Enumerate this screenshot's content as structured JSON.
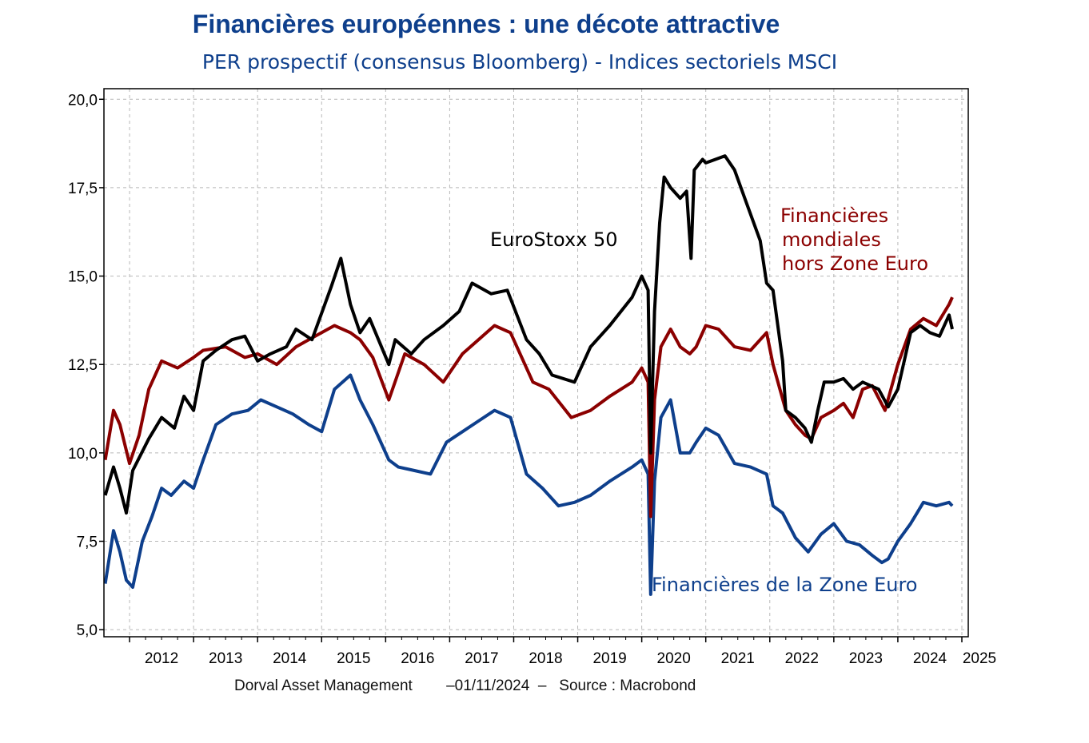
{
  "chart_data": {
    "type": "line",
    "title": "Financières européennes : une décote attractive",
    "subtitle": "PER prospectif (consensus Bloomberg) - Indices sectoriels MSCI",
    "xlabel": "",
    "ylabel": "",
    "xlim": [
      2011.6,
      2025.1
    ],
    "ylim": [
      4.8,
      20.3
    ],
    "x_ticks": [
      2012,
      2013,
      2014,
      2015,
      2016,
      2017,
      2018,
      2019,
      2020,
      2021,
      2022,
      2023,
      2024,
      2025
    ],
    "x_tick_labels": [
      "2012",
      "2013",
      "2014",
      "2015",
      "2016",
      "2017",
      "2018",
      "2019",
      "2020",
      "2021",
      "2022",
      "2023",
      "2024",
      "2025"
    ],
    "y_ticks": [
      5.0,
      7.5,
      10.0,
      12.5,
      15.0,
      17.5,
      20.0
    ],
    "y_tick_labels": [
      "5,0",
      "7,5",
      "10,0",
      "12,5",
      "15,0",
      "17,5",
      "20,0"
    ],
    "grid": true,
    "legend": "none",
    "series": [
      {
        "name": "EuroStoxx 50",
        "color": "#000000",
        "x": [
          2011.62,
          2011.75,
          2011.85,
          2011.95,
          2012.05,
          2012.3,
          2012.5,
          2012.7,
          2012.85,
          2013.0,
          2013.15,
          2013.35,
          2013.6,
          2013.8,
          2014.0,
          2014.2,
          2014.45,
          2014.6,
          2014.85,
          2015.15,
          2015.3,
          2015.45,
          2015.6,
          2015.75,
          2016.05,
          2016.15,
          2016.4,
          2016.6,
          2016.9,
          2017.15,
          2017.35,
          2017.65,
          2017.9,
          2018.2,
          2018.4,
          2018.6,
          2018.95,
          2019.2,
          2019.5,
          2019.85,
          2020.0,
          2020.1,
          2020.14,
          2020.2,
          2020.28,
          2020.35,
          2020.45,
          2020.6,
          2020.7,
          2020.77,
          2020.82,
          2020.95,
          2021.0,
          2021.3,
          2021.45,
          2021.65,
          2021.85,
          2021.95,
          2022.05,
          2022.2,
          2022.25,
          2022.4,
          2022.55,
          2022.65,
          2022.75,
          2022.85,
          2023.0,
          2023.15,
          2023.3,
          2023.45,
          2023.7,
          2023.85,
          2024.0,
          2024.2,
          2024.35,
          2024.5,
          2024.65,
          2024.8,
          2024.85
        ],
        "values": [
          8.8,
          9.6,
          9.0,
          8.3,
          9.5,
          10.4,
          11.0,
          10.7,
          11.6,
          11.2,
          12.6,
          12.9,
          13.2,
          13.3,
          12.6,
          12.8,
          13.0,
          13.5,
          13.2,
          14.7,
          15.5,
          14.2,
          13.4,
          13.8,
          12.5,
          13.2,
          12.8,
          13.2,
          13.6,
          14.0,
          14.8,
          14.5,
          14.6,
          13.2,
          12.8,
          12.2,
          12.0,
          13.0,
          13.6,
          14.4,
          15.0,
          14.6,
          10.0,
          14.0,
          16.5,
          17.8,
          17.5,
          17.2,
          17.4,
          15.5,
          18.0,
          18.3,
          18.2,
          18.4,
          18.0,
          17.0,
          16.0,
          14.8,
          14.6,
          12.6,
          11.2,
          11.0,
          10.7,
          10.3,
          11.2,
          12.0,
          12.0,
          12.1,
          11.8,
          12.0,
          11.8,
          11.3,
          11.8,
          13.4,
          13.6,
          13.4,
          13.3,
          13.9,
          13.5
        ]
      },
      {
        "name": "Financières mondiales hors Zone Euro",
        "color": "#8b0000",
        "x": [
          2011.62,
          2011.75,
          2011.85,
          2012.0,
          2012.15,
          2012.3,
          2012.5,
          2012.75,
          2013.0,
          2013.15,
          2013.5,
          2013.8,
          2014.0,
          2014.3,
          2014.6,
          2014.9,
          2015.2,
          2015.45,
          2015.6,
          2015.8,
          2016.05,
          2016.3,
          2016.6,
          2016.9,
          2017.2,
          2017.45,
          2017.7,
          2017.95,
          2018.3,
          2018.55,
          2018.9,
          2019.2,
          2019.5,
          2019.85,
          2020.0,
          2020.1,
          2020.14,
          2020.2,
          2020.3,
          2020.45,
          2020.6,
          2020.75,
          2020.85,
          2021.0,
          2021.2,
          2021.45,
          2021.7,
          2021.95,
          2022.05,
          2022.25,
          2022.4,
          2022.55,
          2022.65,
          2022.8,
          2023.0,
          2023.15,
          2023.3,
          2023.45,
          2023.6,
          2023.8,
          2024.0,
          2024.2,
          2024.4,
          2024.6,
          2024.8,
          2024.85
        ],
        "values": [
          9.8,
          11.2,
          10.8,
          9.7,
          10.5,
          11.8,
          12.6,
          12.4,
          12.7,
          12.9,
          13.0,
          12.7,
          12.8,
          12.5,
          13.0,
          13.3,
          13.6,
          13.4,
          13.2,
          12.7,
          11.5,
          12.8,
          12.5,
          12.0,
          12.8,
          13.2,
          13.6,
          13.4,
          12.0,
          11.8,
          11.0,
          11.2,
          11.6,
          12.0,
          12.4,
          12.0,
          8.2,
          11.5,
          13.0,
          13.5,
          13.0,
          12.8,
          13.0,
          13.6,
          13.5,
          13.0,
          12.9,
          13.4,
          12.5,
          11.2,
          10.8,
          10.5,
          10.4,
          11.0,
          11.2,
          11.4,
          11.0,
          11.8,
          11.9,
          11.2,
          12.5,
          13.5,
          13.8,
          13.6,
          14.2,
          14.4
        ]
      },
      {
        "name": "Financières de la Zone Euro",
        "color": "#0e3f8c",
        "x": [
          2011.62,
          2011.75,
          2011.85,
          2011.95,
          2012.05,
          2012.2,
          2012.35,
          2012.5,
          2012.65,
          2012.85,
          2013.0,
          2013.15,
          2013.35,
          2013.6,
          2013.85,
          2014.05,
          2014.3,
          2014.55,
          2014.8,
          2015.0,
          2015.2,
          2015.45,
          2015.6,
          2015.8,
          2016.05,
          2016.2,
          2016.45,
          2016.7,
          2016.95,
          2017.2,
          2017.45,
          2017.7,
          2017.95,
          2018.2,
          2018.45,
          2018.7,
          2018.95,
          2019.2,
          2019.5,
          2019.85,
          2020.0,
          2020.1,
          2020.14,
          2020.2,
          2020.3,
          2020.45,
          2020.6,
          2020.75,
          2020.85,
          2021.0,
          2021.2,
          2021.45,
          2021.7,
          2021.95,
          2022.05,
          2022.2,
          2022.4,
          2022.6,
          2022.8,
          2023.0,
          2023.2,
          2023.4,
          2023.6,
          2023.75,
          2023.85,
          2024.0,
          2024.2,
          2024.4,
          2024.6,
          2024.8,
          2024.85
        ],
        "values": [
          6.3,
          7.8,
          7.2,
          6.4,
          6.2,
          7.5,
          8.2,
          9.0,
          8.8,
          9.2,
          9.0,
          9.8,
          10.8,
          11.1,
          11.2,
          11.5,
          11.3,
          11.1,
          10.8,
          10.6,
          11.8,
          12.2,
          11.5,
          10.8,
          9.8,
          9.6,
          9.5,
          9.4,
          10.3,
          10.6,
          10.9,
          11.2,
          11.0,
          9.4,
          9.0,
          8.5,
          8.6,
          8.8,
          9.2,
          9.6,
          9.8,
          9.4,
          6.0,
          9.2,
          11.0,
          11.5,
          10.0,
          10.0,
          10.3,
          10.7,
          10.5,
          9.7,
          9.6,
          9.4,
          8.5,
          8.3,
          7.6,
          7.2,
          7.7,
          8.0,
          7.5,
          7.4,
          7.1,
          6.9,
          7.0,
          7.5,
          8.0,
          8.6,
          8.5,
          8.6,
          8.5
        ]
      }
    ],
    "annotations": [
      {
        "text": "EuroStoxx 50",
        "color": "#000000"
      },
      {
        "text": "Financières",
        "color": "#8b0000"
      },
      {
        "text": "mondiales",
        "color": "#8b0000"
      },
      {
        "text": "hors Zone Euro",
        "color": "#8b0000"
      },
      {
        "text": "Financières de la Zone Euro",
        "color": "#0e3f8c"
      }
    ]
  },
  "footer": {
    "source_line": "Dorval Asset Management        –01/11/2024  –   Source : Macrobond"
  }
}
